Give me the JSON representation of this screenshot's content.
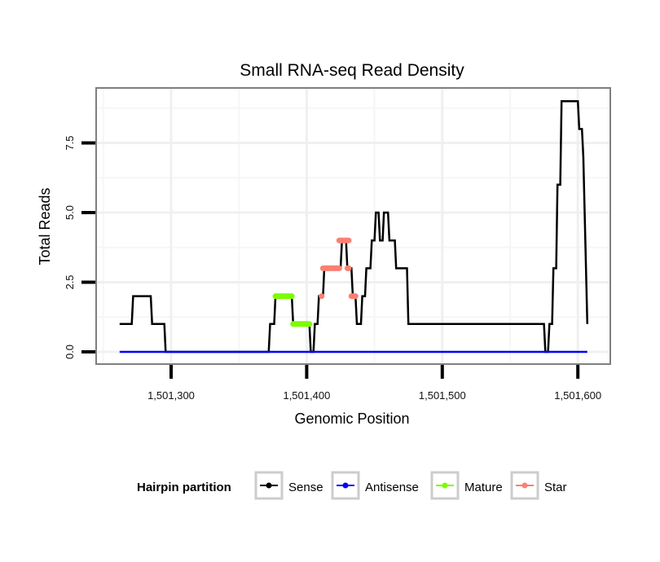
{
  "chart_data": {
    "type": "line",
    "title": "Small RNA-seq Read Density",
    "xlabel": "Genomic Position",
    "ylabel": "Total Reads",
    "xlim": [
      1501250,
      1501626
    ],
    "ylim": [
      -0.35,
      9.5
    ],
    "x_ticks": [
      1501300,
      1501400,
      1501500,
      1501600
    ],
    "x_tick_labels": [
      "1,501,300",
      "1,501,400",
      "1,501,500",
      "1,501,600"
    ],
    "y_ticks": [
      0,
      2.5,
      5,
      7.5
    ],
    "y_tick_labels": [
      "0.0",
      "2.5",
      "5.0",
      "7.5"
    ],
    "grid": true,
    "legend": {
      "title": "Hairpin partition",
      "placement": "bottom",
      "entries": [
        {
          "name": "Sense",
          "color": "#000000"
        },
        {
          "name": "Antisense",
          "color": "#0000ff"
        },
        {
          "name": "Mature",
          "color": "#7cfc00"
        },
        {
          "name": "Star",
          "color": "#fa8072"
        }
      ]
    },
    "series": [
      {
        "name": "Sense",
        "color": "#000000",
        "x": [
          1501262,
          1501271,
          1501272,
          1501285,
          1501286,
          1501295,
          1501296,
          1501372,
          1501373,
          1501376,
          1501377,
          1501389,
          1501390,
          1501402,
          1501403,
          1501405,
          1501406,
          1501408,
          1501409,
          1501412,
          1501413,
          1501425,
          1501426,
          1501429,
          1501430,
          1501433,
          1501434,
          1501436,
          1501437,
          1501440,
          1501441,
          1501443,
          1501444,
          1501447,
          1501448,
          1501450,
          1501451,
          1501453,
          1501454,
          1501456,
          1501457,
          1501460,
          1501461,
          1501465,
          1501466,
          1501474,
          1501475,
          1501575,
          1501576,
          1501578,
          1501579,
          1501581,
          1501582,
          1501584,
          1501585,
          1501587,
          1501588,
          1501600,
          1501601,
          1501603,
          1501604,
          1501607
        ],
        "y": [
          1,
          1,
          2,
          2,
          1,
          1,
          0,
          0,
          1,
          1,
          2,
          2,
          1,
          1,
          0,
          0,
          1,
          1,
          2,
          2,
          3,
          3,
          4,
          4,
          3,
          3,
          2,
          2,
          1,
          1,
          2,
          2,
          3,
          3,
          4,
          4,
          5,
          5,
          4,
          4,
          5,
          5,
          4,
          4,
          3,
          3,
          1,
          1,
          0,
          0,
          1,
          1,
          3,
          3,
          6,
          6,
          9,
          9,
          8,
          8,
          7,
          1
        ]
      },
      {
        "name": "Antisense",
        "color": "#0000ff",
        "x": [
          1501262,
          1501607
        ],
        "y": [
          0,
          0
        ]
      },
      {
        "name": "Mature",
        "color": "#7cfc00",
        "segments": [
          {
            "x": [
              1501377,
              1501389
            ],
            "y": 2
          },
          {
            "x": [
              1501390,
              1501402
            ],
            "y": 1
          }
        ]
      },
      {
        "name": "Star",
        "color": "#fa8072",
        "segments": [
          {
            "x": [
              1501411,
              1501411
            ],
            "y": 2
          },
          {
            "x": [
              1501412,
              1501424
            ],
            "y": 3
          },
          {
            "x": [
              1501424,
              1501431
            ],
            "y": 4
          },
          {
            "x": [
              1501430,
              1501431
            ],
            "y": 3
          },
          {
            "x": [
              1501433,
              1501436
            ],
            "y": 2
          }
        ]
      }
    ]
  }
}
